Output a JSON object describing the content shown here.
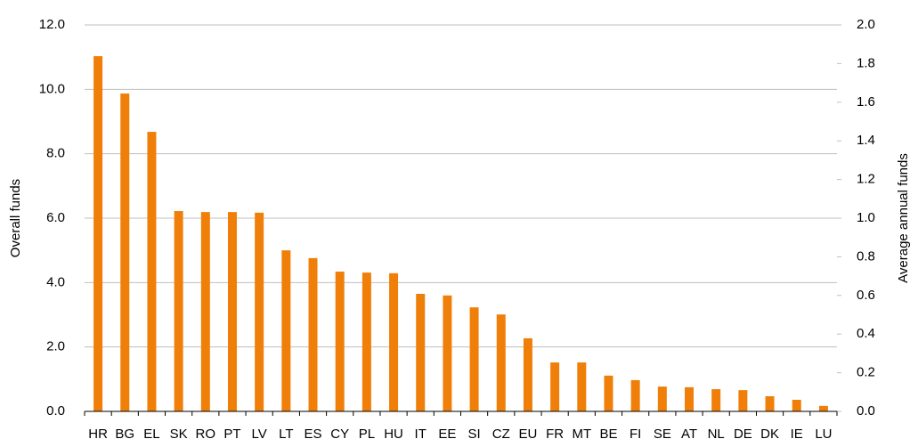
{
  "chart_data": {
    "type": "bar",
    "ylabel": "Overall funds",
    "y2label": "Average annual funds",
    "categories": [
      "HR",
      "BG",
      "EL",
      "SK",
      "RO",
      "PT",
      "LV",
      "LT",
      "ES",
      "CY",
      "PL",
      "HU",
      "IT",
      "EE",
      "SI",
      "CZ",
      "EU",
      "FR",
      "MT",
      "BE",
      "FI",
      "SE",
      "AT",
      "NL",
      "DE",
      "DK",
      "IE",
      "LU"
    ],
    "values": [
      11.03,
      9.87,
      8.68,
      6.22,
      6.19,
      6.19,
      6.17,
      5.0,
      4.76,
      4.34,
      4.31,
      4.29,
      3.65,
      3.6,
      3.23,
      3.01,
      2.27,
      1.52,
      1.52,
      1.11,
      0.97,
      0.77,
      0.75,
      0.69,
      0.66,
      0.47,
      0.36,
      0.17
    ],
    "color": "#f07f09",
    "ylim": [
      0,
      12
    ],
    "yticks": [
      {
        "value": 0,
        "label": "0.0"
      },
      {
        "value": 2,
        "label": "2.0"
      },
      {
        "value": 4,
        "label": "4.0"
      },
      {
        "value": 6,
        "label": "6.0"
      },
      {
        "value": 8,
        "label": "8.0"
      },
      {
        "value": 10,
        "label": "10.0"
      },
      {
        "value": 12,
        "label": "12.0"
      }
    ],
    "y2lim": [
      0,
      2
    ],
    "y2ticks": [
      {
        "value": 0,
        "label": "0.0"
      },
      {
        "value": 0.2,
        "label": "0.2"
      },
      {
        "value": 0.4,
        "label": "0.4"
      },
      {
        "value": 0.6,
        "label": "0.6"
      },
      {
        "value": 0.8,
        "label": "0.8"
      },
      {
        "value": 1,
        "label": "1.0"
      },
      {
        "value": 1.2,
        "label": "1.2"
      },
      {
        "value": 1.4,
        "label": "1.4"
      },
      {
        "value": 1.6,
        "label": "1.6"
      },
      {
        "value": 1.8,
        "label": "1.8"
      },
      {
        "value": 2,
        "label": "2.0"
      }
    ],
    "grid": true
  }
}
